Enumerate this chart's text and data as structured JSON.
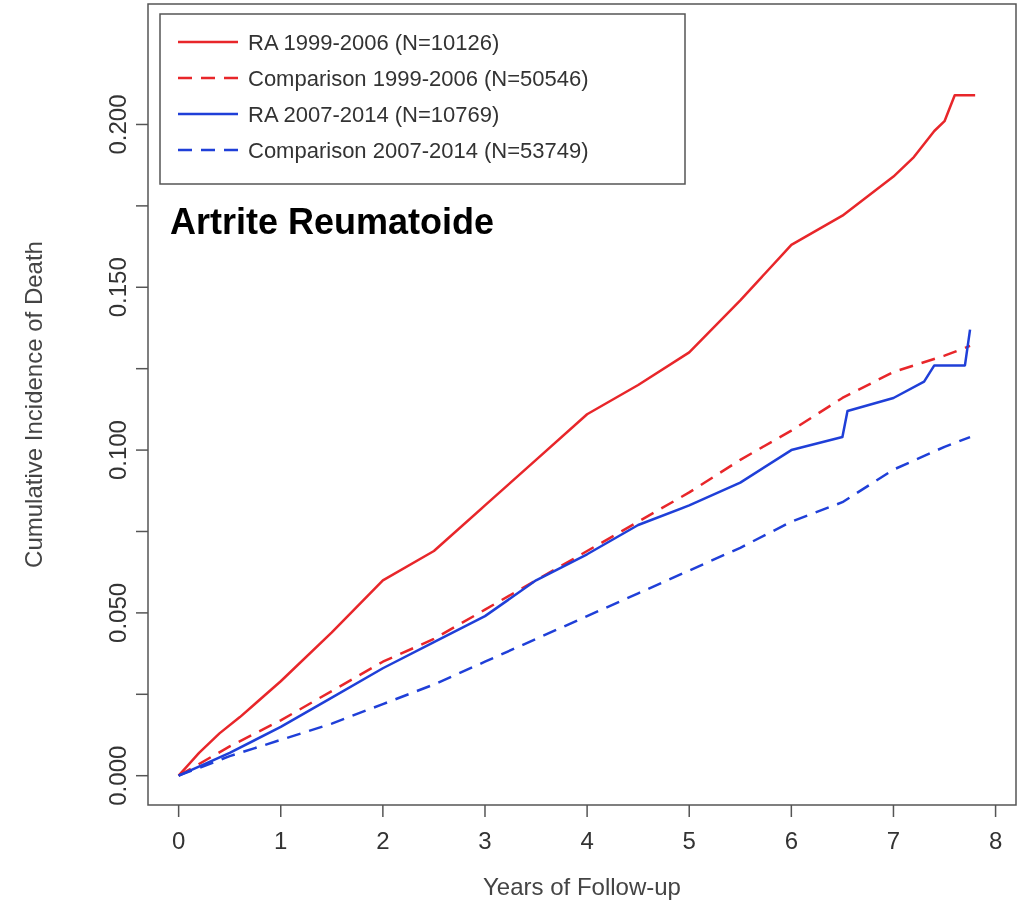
{
  "chart_data": {
    "type": "line",
    "xlabel": "Years of Follow-up",
    "ylabel": "Cumulative Incidence of Death",
    "annotations": [
      "Artrite Reumatoide"
    ],
    "xlim": [
      -0.3,
      8.2
    ],
    "ylim": [
      -0.009,
      0.237
    ],
    "xticks": [
      0,
      1,
      2,
      3,
      4,
      5,
      6,
      7,
      8
    ],
    "yticks": [
      {
        "value": 0,
        "label": "0.000"
      },
      {
        "value": 0.025,
        "label": null
      },
      {
        "value": 0.05,
        "label": "0.050"
      },
      {
        "value": 0.075,
        "label": null
      },
      {
        "value": 0.1,
        "label": "0.100"
      },
      {
        "value": 0.125,
        "label": null
      },
      {
        "value": 0.15,
        "label": "0.150"
      },
      {
        "value": 0.175,
        "label": null
      },
      {
        "value": 0.2,
        "label": "0.200"
      }
    ],
    "grid": false,
    "legend": "top left",
    "series": [
      {
        "name": "RA 1999-2006 (N=10126)",
        "color": "#e8262a",
        "line_style": "solid",
        "x": [
          0,
          0.2,
          0.4,
          0.6,
          1,
          1.5,
          2,
          2.5,
          3,
          3.5,
          4,
          4.5,
          5,
          5.5,
          6,
          6.5,
          7,
          7.2,
          7.4,
          7.5,
          7.6,
          7.8
        ],
        "values": [
          0,
          0.007,
          0.013,
          0.018,
          0.029,
          0.044,
          0.06,
          0.069,
          0.083,
          0.097,
          0.111,
          0.12,
          0.13,
          0.146,
          0.163,
          0.172,
          0.184,
          0.19,
          0.198,
          0.201,
          0.209,
          0.209
        ]
      },
      {
        "name": "Comparison 1999-2006 (N=50546)",
        "color": "#e8262a",
        "line_style": "dashed",
        "x": [
          0,
          0.5,
          1,
          1.5,
          2,
          2.5,
          3,
          3.5,
          4,
          4.5,
          5,
          5.5,
          6,
          6.5,
          7,
          7.5,
          7.75
        ],
        "values": [
          0,
          0.009,
          0.017,
          0.026,
          0.035,
          0.042,
          0.051,
          0.06,
          0.069,
          0.078,
          0.087,
          0.097,
          0.106,
          0.116,
          0.124,
          0.129,
          0.132
        ]
      },
      {
        "name": "RA 2007-2014 (N=10769)",
        "color": "#1f3fd8",
        "line_style": "solid",
        "x": [
          0,
          0.5,
          1,
          1.5,
          2,
          2.5,
          3,
          3.5,
          4,
          4.5,
          5,
          5.5,
          6,
          6.5,
          6.55,
          7,
          7.3,
          7.4,
          7.7,
          7.75
        ],
        "values": [
          0,
          0.007,
          0.015,
          0.024,
          0.033,
          0.041,
          0.049,
          0.06,
          0.068,
          0.077,
          0.083,
          0.09,
          0.1,
          0.104,
          0.112,
          0.116,
          0.121,
          0.126,
          0.126,
          0.137
        ]
      },
      {
        "name": "Comparison 2007-2014 (N=53749)",
        "color": "#1f3fd8",
        "line_style": "dashed",
        "x": [
          0,
          0.5,
          1,
          1.5,
          2,
          2.5,
          3,
          3.5,
          4,
          4.5,
          5,
          5.5,
          6,
          6.5,
          7,
          7.5,
          7.75
        ],
        "values": [
          0,
          0.006,
          0.011,
          0.016,
          0.022,
          0.028,
          0.035,
          0.042,
          0.049,
          0.056,
          0.063,
          0.07,
          0.078,
          0.084,
          0.094,
          0.101,
          0.104
        ]
      }
    ]
  }
}
